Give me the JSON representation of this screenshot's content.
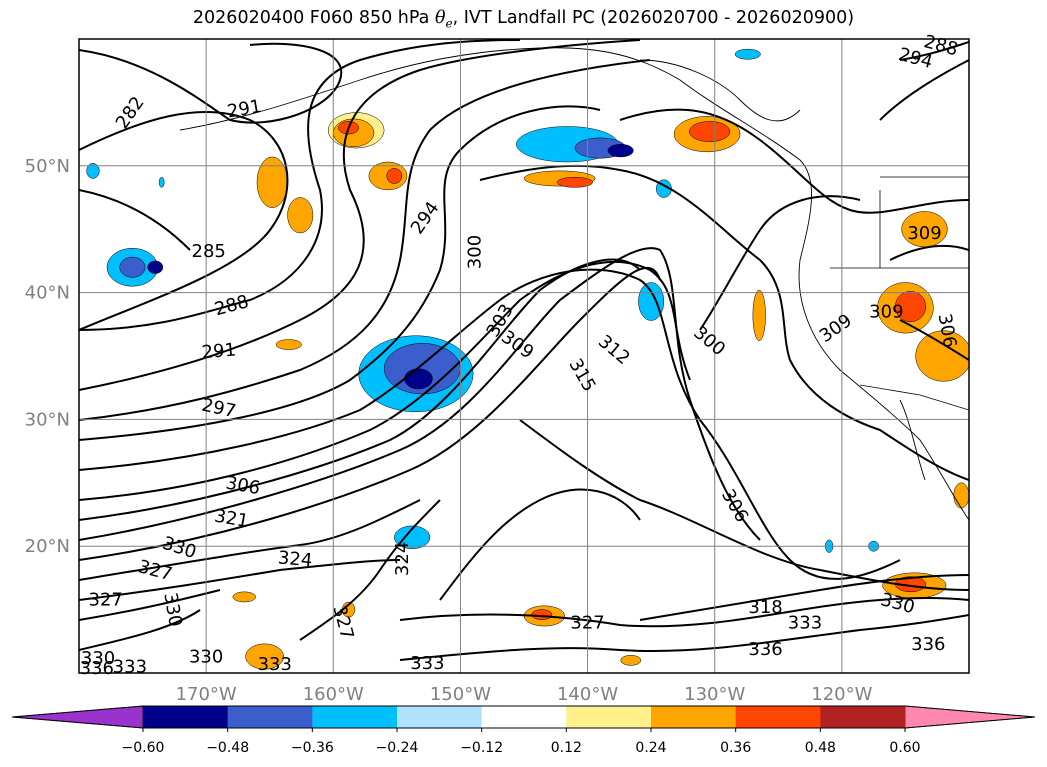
{
  "title": {
    "prefix": "2026020400 F060 850 hPa ",
    "symbol": "θ",
    "subscript": "e",
    "suffix": ", IVT Landfall PC (2026020700 - 2026020900)"
  },
  "chart_data": {
    "type": "contour",
    "title": "2026020400 F060 850 hPa θe, IVT Landfall PC (2026020700 - 2026020900)",
    "xlabel": "",
    "ylabel": "",
    "map_extent": {
      "lon": [
        -180,
        -110
      ],
      "lat": [
        10,
        60
      ]
    },
    "grid": true,
    "x_ticks": [
      "170°W",
      "160°W",
      "150°W",
      "140°W",
      "130°W",
      "120°W"
    ],
    "x_tick_values": [
      -170,
      -160,
      -150,
      -140,
      -130,
      -120
    ],
    "y_ticks": [
      "50°N",
      "40°N",
      "30°N",
      "20°N"
    ],
    "y_tick_values": [
      50,
      40,
      30,
      20
    ],
    "contour_field": "850 hPa theta-e",
    "contour_labels": [
      {
        "text": "282",
        "lon": -176.0,
        "lat": 54.2,
        "rot": 55
      },
      {
        "text": "291",
        "lon": -167.0,
        "lat": 54.5,
        "rot": 10
      },
      {
        "text": "285",
        "lon": -169.8,
        "lat": 43.3,
        "rot": 0
      },
      {
        "text": "288",
        "lon": -168.0,
        "lat": 39.0,
        "rot": 15
      },
      {
        "text": "291",
        "lon": -169.0,
        "lat": 35.4,
        "rot": 5
      },
      {
        "text": "297",
        "lon": -169.0,
        "lat": 30.9,
        "rot": -12
      },
      {
        "text": "306",
        "lon": -167.1,
        "lat": 24.8,
        "rot": -10
      },
      {
        "text": "321",
        "lon": -168.0,
        "lat": 22.2,
        "rot": -10
      },
      {
        "text": "330",
        "lon": -172.1,
        "lat": 19.9,
        "rot": -18
      },
      {
        "text": "327",
        "lon": -174.0,
        "lat": 18.1,
        "rot": -15
      },
      {
        "text": "327",
        "lon": -177.9,
        "lat": 15.8,
        "rot": 0
      },
      {
        "text": "324",
        "lon": -163.0,
        "lat": 19.0,
        "rot": -5
      },
      {
        "text": "324",
        "lon": -154.6,
        "lat": 19.0,
        "rot": 90
      },
      {
        "text": "330",
        "lon": -172.6,
        "lat": 15.0,
        "rot": -80
      },
      {
        "text": "327",
        "lon": -159.2,
        "lat": 14.0,
        "rot": -75
      },
      {
        "text": "330",
        "lon": -178.5,
        "lat": 11.2,
        "rot": 0
      },
      {
        "text": "336",
        "lon": -178.6,
        "lat": 10.4,
        "rot": 0
      },
      {
        "text": "333",
        "lon": -176.0,
        "lat": 10.5,
        "rot": 0
      },
      {
        "text": "330",
        "lon": -170.0,
        "lat": 11.3,
        "rot": 0
      },
      {
        "text": "333",
        "lon": -164.6,
        "lat": 10.7,
        "rot": 0
      },
      {
        "text": "333",
        "lon": -152.6,
        "lat": 10.8,
        "rot": 0
      },
      {
        "text": "294",
        "lon": -152.8,
        "lat": 45.9,
        "rot": 55
      },
      {
        "text": "300",
        "lon": -148.9,
        "lat": 43.2,
        "rot": 90
      },
      {
        "text": "303",
        "lon": -146.9,
        "lat": 37.8,
        "rot": 60
      },
      {
        "text": "309",
        "lon": -145.5,
        "lat": 35.9,
        "rot": -35
      },
      {
        "text": "315",
        "lon": -140.4,
        "lat": 33.5,
        "rot": -60
      },
      {
        "text": "312",
        "lon": -137.9,
        "lat": 35.5,
        "rot": -40
      },
      {
        "text": "300",
        "lon": -130.4,
        "lat": 36.2,
        "rot": -40
      },
      {
        "text": "306",
        "lon": -128.4,
        "lat": 23.2,
        "rot": -60
      },
      {
        "text": "309",
        "lon": -120.5,
        "lat": 37.2,
        "rot": 35
      },
      {
        "text": "309",
        "lon": -116.5,
        "lat": 38.5,
        "rot": 0
      },
      {
        "text": "309",
        "lon": -113.5,
        "lat": 44.7,
        "rot": 0
      },
      {
        "text": "306",
        "lon": -111.7,
        "lat": 37.0,
        "rot": -80
      },
      {
        "text": "318",
        "lon": -126.0,
        "lat": 15.2,
        "rot": 0
      },
      {
        "text": "330",
        "lon": -115.6,
        "lat": 15.5,
        "rot": -15
      },
      {
        "text": "333",
        "lon": -122.9,
        "lat": 14.0,
        "rot": 0
      },
      {
        "text": "336",
        "lon": -126.0,
        "lat": 11.9,
        "rot": 0
      },
      {
        "text": "336",
        "lon": -113.2,
        "lat": 12.3,
        "rot": 0
      },
      {
        "text": "327",
        "lon": -140.0,
        "lat": 14.0,
        "rot": 0
      },
      {
        "text": "294",
        "lon": -114.2,
        "lat": 58.5,
        "rot": -15
      },
      {
        "text": "288",
        "lon": -112.2,
        "lat": 59.5,
        "rot": -15
      }
    ],
    "fill_field": "IVT Landfall PC",
    "fill_regions": [
      {
        "lon": -175.8,
        "lat": 42.0,
        "rlon": 2.0,
        "rlat": 1.5,
        "level": -0.24
      },
      {
        "lon": -175.8,
        "lat": 42.0,
        "rlon": 1.0,
        "rlat": 0.8,
        "level": -0.36
      },
      {
        "lon": -174.0,
        "lat": 42.0,
        "rlon": 0.6,
        "rlat": 0.5,
        "level": -0.48
      },
      {
        "lon": -178.9,
        "lat": 49.6,
        "rlon": 0.5,
        "rlat": 0.6,
        "level": -0.24
      },
      {
        "lon": -173.5,
        "lat": 48.7,
        "rlon": 0.2,
        "rlat": 0.4,
        "level": -0.24
      },
      {
        "lon": -153.5,
        "lat": 33.6,
        "rlon": 4.5,
        "rlat": 3.0,
        "level": -0.24
      },
      {
        "lon": -153.0,
        "lat": 34.0,
        "rlon": 3.0,
        "rlat": 2.0,
        "level": -0.36
      },
      {
        "lon": -153.3,
        "lat": 33.2,
        "rlon": 1.1,
        "rlat": 0.8,
        "level": -0.48
      },
      {
        "lon": -141.6,
        "lat": 51.7,
        "rlon": 4.0,
        "rlat": 1.4,
        "level": -0.24
      },
      {
        "lon": -139.0,
        "lat": 51.4,
        "rlon": 2.0,
        "rlat": 0.8,
        "level": -0.36
      },
      {
        "lon": -137.4,
        "lat": 51.2,
        "rlon": 1.0,
        "rlat": 0.5,
        "level": -0.48
      },
      {
        "lon": -135.0,
        "lat": 39.3,
        "rlon": 1.0,
        "rlat": 1.5,
        "level": -0.24
      },
      {
        "lon": -134.0,
        "lat": 48.2,
        "rlon": 0.6,
        "rlat": 0.7,
        "level": -0.24
      },
      {
        "lon": -127.4,
        "lat": 58.8,
        "rlon": 1.0,
        "rlat": 0.4,
        "level": -0.24
      },
      {
        "lon": -153.8,
        "lat": 20.7,
        "rlon": 1.4,
        "rlat": 0.9,
        "level": -0.24
      },
      {
        "lon": -121.0,
        "lat": 20.0,
        "rlon": 0.3,
        "rlat": 0.5,
        "level": -0.24
      },
      {
        "lon": -117.5,
        "lat": 20.0,
        "rlon": 0.4,
        "rlat": 0.4,
        "level": -0.24
      },
      {
        "lon": -158.2,
        "lat": 52.8,
        "rlon": 2.2,
        "rlat": 1.4,
        "level": 0.12
      },
      {
        "lon": -158.4,
        "lat": 52.6,
        "rlon": 1.6,
        "rlat": 1.1,
        "level": 0.24
      },
      {
        "lon": -158.8,
        "lat": 53.0,
        "rlon": 0.8,
        "rlat": 0.5,
        "level": 0.36
      },
      {
        "lon": -155.7,
        "lat": 49.2,
        "rlon": 1.5,
        "rlat": 1.1,
        "level": 0.24
      },
      {
        "lon": -155.2,
        "lat": 49.2,
        "rlon": 0.6,
        "rlat": 0.6,
        "level": 0.36
      },
      {
        "lon": -164.8,
        "lat": 48.7,
        "rlon": 1.2,
        "rlat": 2.0,
        "level": 0.24
      },
      {
        "lon": -162.6,
        "lat": 46.1,
        "rlon": 1.0,
        "rlat": 1.4,
        "level": 0.24
      },
      {
        "lon": -142.2,
        "lat": 49.0,
        "rlon": 2.8,
        "rlat": 0.6,
        "level": 0.24
      },
      {
        "lon": -141.0,
        "lat": 48.7,
        "rlon": 1.4,
        "rlat": 0.4,
        "level": 0.36
      },
      {
        "lon": -130.6,
        "lat": 52.5,
        "rlon": 2.6,
        "rlat": 1.4,
        "level": 0.24
      },
      {
        "lon": -130.4,
        "lat": 52.7,
        "rlon": 1.6,
        "rlat": 0.8,
        "level": 0.36
      },
      {
        "lon": -126.5,
        "lat": 38.2,
        "rlon": 0.5,
        "rlat": 2.0,
        "level": 0.24
      },
      {
        "lon": -113.5,
        "lat": 45.0,
        "rlon": 1.8,
        "rlat": 1.4,
        "level": 0.24
      },
      {
        "lon": -115.0,
        "lat": 38.8,
        "rlon": 2.2,
        "rlat": 2.0,
        "level": 0.24
      },
      {
        "lon": -114.6,
        "lat": 38.9,
        "rlon": 1.2,
        "rlat": 1.2,
        "level": 0.36
      },
      {
        "lon": -112.0,
        "lat": 35.0,
        "rlon": 2.2,
        "rlat": 2.0,
        "level": 0.24
      },
      {
        "lon": -114.3,
        "lat": 16.9,
        "rlon": 2.5,
        "rlat": 1.0,
        "level": 0.24
      },
      {
        "lon": -114.6,
        "lat": 17.0,
        "rlon": 1.2,
        "rlat": 0.6,
        "level": 0.36
      },
      {
        "lon": -143.4,
        "lat": 14.5,
        "rlon": 1.6,
        "rlat": 0.8,
        "level": 0.24
      },
      {
        "lon": -143.6,
        "lat": 14.6,
        "rlon": 0.8,
        "rlat": 0.4,
        "level": 0.36
      },
      {
        "lon": -165.4,
        "lat": 11.3,
        "rlon": 1.5,
        "rlat": 1.0,
        "level": 0.24
      },
      {
        "lon": -163.5,
        "lat": 35.9,
        "rlon": 1.0,
        "rlat": 0.4,
        "level": 0.24
      },
      {
        "lon": -136.6,
        "lat": 11.0,
        "rlon": 0.8,
        "rlat": 0.4,
        "level": 0.24
      },
      {
        "lon": -110.6,
        "lat": 24.0,
        "rlon": 0.6,
        "rlat": 1.0,
        "level": 0.24
      },
      {
        "lon": -167.0,
        "lat": 16.0,
        "rlon": 0.9,
        "rlat": 0.4,
        "level": 0.24
      },
      {
        "lon": -158.8,
        "lat": 15.0,
        "rlon": 0.5,
        "rlat": 0.6,
        "level": 0.24
      }
    ],
    "colorbar": {
      "ticks": [
        "−0.60",
        "−0.48",
        "−0.36",
        "−0.24",
        "−0.12",
        "0.12",
        "0.24",
        "0.36",
        "0.48",
        "0.60"
      ],
      "extend": "both",
      "under_color": "#9a32cd",
      "over_color": "#ff88b0",
      "colors": [
        "#00008b",
        "#3a5fcd",
        "#00bfff",
        "#b0e2ff",
        "#ffffff",
        "#fff08c",
        "#ffa500",
        "#ff4500",
        "#b22222"
      ]
    }
  }
}
